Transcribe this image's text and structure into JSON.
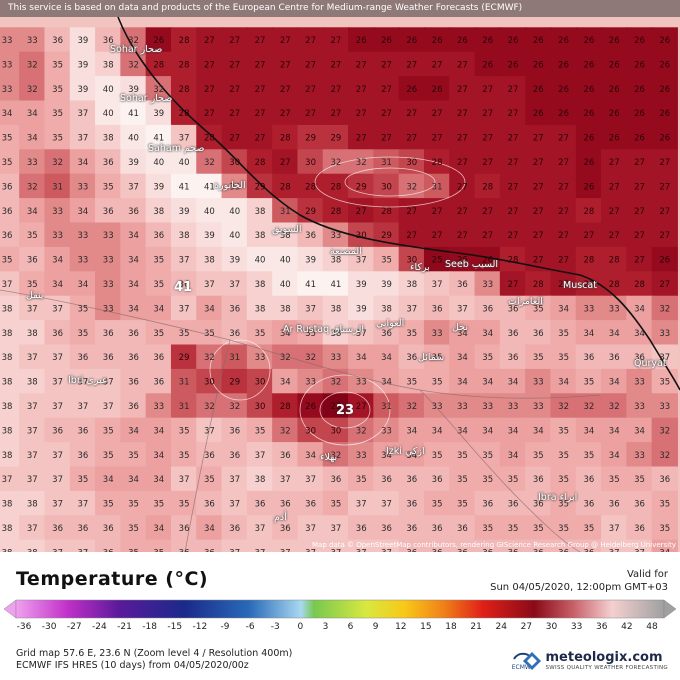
{
  "banner": "This service is based on data and products of the European Centre for Medium-range Weather Forecasts (ECMWF)",
  "attribution": "Map data © OpenStreetMap contributors, rendering GIScience Research Group @ Heidelberg University",
  "places": [
    {
      "id": "sohar",
      "label": "Sohar صحار"
    },
    {
      "id": "saham",
      "label": "Saham صحم"
    },
    {
      "id": "khaburah",
      "label": "الخابورة"
    },
    {
      "id": "suwayq",
      "label": "السويق"
    },
    {
      "id": "musanaah",
      "label": "المصنعة"
    },
    {
      "id": "barka",
      "label": "بركاء"
    },
    {
      "id": "seeb",
      "label": "Seeb السيب"
    },
    {
      "id": "muscat",
      "label": "Muscat"
    },
    {
      "id": "amerat",
      "label": "العامرات"
    },
    {
      "id": "rustaq",
      "label": "Ar Rustaq الرستاق"
    },
    {
      "id": "awabi",
      "label": "العوابي"
    },
    {
      "id": "nakhal",
      "label": "نخل"
    },
    {
      "id": "samail",
      "label": "سمائل"
    },
    {
      "id": "ibri",
      "label": "Ibri عبري"
    },
    {
      "id": "bahla",
      "label": "بهلاء"
    },
    {
      "id": "izki",
      "label": "Izki ازكي"
    },
    {
      "id": "quryat",
      "label": "Quryat"
    },
    {
      "id": "ibra",
      "label": "Ibra ابراء"
    },
    {
      "id": "adam",
      "label": "أدم"
    },
    {
      "id": "yanqul",
      "label": "ينقل"
    }
  ],
  "peak_labels": {
    "hot": "41",
    "cold": "23"
  },
  "legend": {
    "title": "Temperature (°C)",
    "valid_label": "Valid for",
    "valid_time": "Sun 04/05/2020, 12:00pm GMT+03",
    "ticks": [
      "-36",
      "-30",
      "-27",
      "-24",
      "-21",
      "-18",
      "-15",
      "-12",
      "-9",
      "-6",
      "-3",
      "0",
      "3",
      "6",
      "9",
      "12",
      "15",
      "18",
      "21",
      "24",
      "27",
      "30",
      "33",
      "36",
      "42",
      "48"
    ]
  },
  "info": {
    "line1": "Grid map 57.6 E, 23.6 N (Zoom level 4 / Resolution 400m)",
    "line2": "ECMWF IFS HRES (10 days) from 04/05/2020/00z"
  },
  "brand": {
    "name": "meteologix.com",
    "tagline": "SWISS QUALITY WEATHER FORECASTING",
    "ecmwf": "ECMWF"
  },
  "grid": [
    [
      33,
      33,
      36,
      39,
      36,
      32,
      26,
      28,
      27,
      27,
      27,
      27,
      27,
      27,
      26,
      26,
      26,
      26,
      26,
      26,
      26,
      26,
      26,
      26,
      26,
      26,
      26
    ],
    [
      33,
      32,
      35,
      39,
      38,
      32,
      28,
      28,
      27,
      27,
      27,
      27,
      27,
      27,
      27,
      27,
      27,
      27,
      27,
      26,
      26,
      26,
      26,
      26,
      26,
      26,
      26
    ],
    [
      33,
      32,
      35,
      39,
      40,
      39,
      32,
      28,
      27,
      27,
      27,
      27,
      27,
      27,
      27,
      27,
      26,
      26,
      27,
      27,
      27,
      26,
      26,
      26,
      26,
      26,
      26
    ],
    [
      34,
      34,
      35,
      37,
      40,
      41,
      39,
      28,
      27,
      27,
      27,
      27,
      27,
      27,
      27,
      27,
      27,
      27,
      27,
      27,
      27,
      26,
      26,
      26,
      26,
      26,
      26
    ],
    [
      35,
      34,
      35,
      37,
      38,
      40,
      41,
      37,
      28,
      27,
      27,
      28,
      29,
      29,
      27,
      27,
      27,
      27,
      27,
      27,
      27,
      27,
      27,
      26,
      26,
      26,
      26
    ],
    [
      35,
      33,
      32,
      34,
      36,
      39,
      40,
      40,
      32,
      30,
      28,
      27,
      30,
      32,
      32,
      31,
      30,
      28,
      27,
      27,
      27,
      27,
      27,
      26,
      27,
      27,
      27
    ],
    [
      36,
      32,
      31,
      33,
      35,
      37,
      39,
      41,
      41,
      33,
      29,
      28,
      28,
      28,
      29,
      30,
      32,
      31,
      27,
      28,
      27,
      27,
      27,
      26,
      27,
      27,
      27
    ],
    [
      36,
      34,
      33,
      34,
      36,
      36,
      38,
      39,
      40,
      40,
      38,
      31,
      29,
      28,
      27,
      28,
      27,
      27,
      27,
      27,
      27,
      27,
      27,
      28,
      27,
      27,
      27
    ],
    [
      36,
      35,
      33,
      33,
      33,
      34,
      36,
      38,
      39,
      40,
      38,
      38,
      36,
      33,
      30,
      29,
      27,
      27,
      27,
      27,
      27,
      27,
      27,
      27,
      27,
      27,
      27
    ],
    [
      35,
      36,
      34,
      33,
      33,
      34,
      35,
      37,
      38,
      39,
      40,
      40,
      39,
      38,
      37,
      35,
      30,
      25,
      26,
      26,
      28,
      27,
      27,
      28,
      28,
      27,
      26
    ],
    [
      37,
      35,
      34,
      34,
      33,
      34,
      35,
      36,
      37,
      37,
      38,
      40,
      41,
      41,
      39,
      39,
      38,
      37,
      36,
      33,
      27,
      28,
      27,
      28,
      28,
      28,
      27
    ],
    [
      38,
      37,
      37,
      35,
      33,
      34,
      34,
      37,
      34,
      36,
      38,
      38,
      37,
      38,
      39,
      38,
      37,
      36,
      37,
      36,
      36,
      35,
      34,
      33,
      33,
      34,
      32
    ],
    [
      38,
      38,
      36,
      35,
      36,
      36,
      35,
      35,
      35,
      36,
      35,
      34,
      35,
      38,
      37,
      36,
      35,
      33,
      34,
      34,
      36,
      36,
      35,
      34,
      34,
      34,
      33
    ],
    [
      38,
      37,
      37,
      36,
      36,
      36,
      36,
      29,
      32,
      31,
      33,
      32,
      32,
      33,
      34,
      34,
      36,
      35,
      34,
      35,
      36,
      35,
      35,
      36,
      36,
      36,
      37
    ],
    [
      38,
      38,
      37,
      37,
      37,
      36,
      36,
      31,
      30,
      29,
      30,
      34,
      33,
      32,
      33,
      34,
      35,
      35,
      34,
      34,
      34,
      33,
      34,
      35,
      34,
      33,
      35
    ],
    [
      38,
      37,
      37,
      37,
      37,
      36,
      33,
      31,
      32,
      32,
      30,
      28,
      26,
      23,
      27,
      31,
      32,
      33,
      33,
      33,
      33,
      33,
      32,
      32,
      32,
      33,
      33
    ],
    [
      38,
      37,
      36,
      36,
      35,
      34,
      34,
      35,
      37,
      36,
      35,
      32,
      30,
      30,
      32,
      33,
      34,
      34,
      34,
      34,
      34,
      34,
      35,
      34,
      34,
      34,
      32
    ],
    [
      38,
      37,
      37,
      36,
      35,
      35,
      34,
      35,
      36,
      36,
      37,
      36,
      34,
      32,
      33,
      34,
      34,
      35,
      35,
      35,
      34,
      35,
      35,
      35,
      34,
      33,
      32
    ],
    [
      37,
      37,
      37,
      35,
      34,
      34,
      34,
      37,
      35,
      37,
      38,
      37,
      37,
      36,
      35,
      36,
      36,
      36,
      35,
      35,
      35,
      36,
      35,
      36,
      35,
      35,
      36
    ],
    [
      38,
      38,
      37,
      37,
      35,
      35,
      35,
      35,
      36,
      37,
      36,
      36,
      36,
      35,
      37,
      37,
      36,
      35,
      35,
      36,
      36,
      36,
      35,
      36,
      36,
      36,
      35
    ],
    [
      38,
      37,
      36,
      36,
      36,
      35,
      34,
      36,
      34,
      36,
      37,
      36,
      37,
      37,
      36,
      36,
      36,
      36,
      36,
      35,
      35,
      35,
      35,
      35,
      37,
      36,
      35
    ],
    [
      38,
      38,
      37,
      37,
      36,
      35,
      35,
      36,
      36,
      37,
      37,
      37,
      37,
      37,
      37,
      37,
      36,
      36,
      36,
      36,
      36,
      36,
      36,
      36,
      37,
      37,
      34
    ]
  ]
}
